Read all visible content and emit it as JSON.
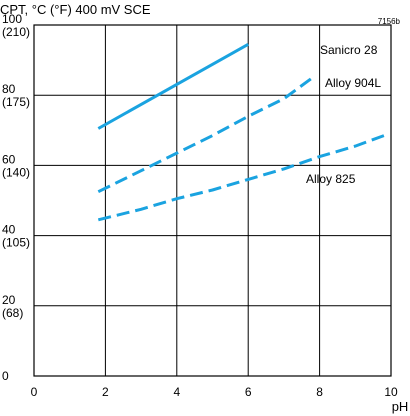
{
  "chart_data": {
    "type": "line",
    "title": "CPT, °C (°F) 400 mV SCE",
    "figure_id": "7156b",
    "xlabel": "pH",
    "ylabel": "",
    "xlim": [
      0,
      10
    ],
    "ylim": [
      0,
      100
    ],
    "grid": true,
    "x_ticks": [
      "0",
      "2",
      "4",
      "6",
      "8",
      "10"
    ],
    "y_ticks": [
      {
        "value": 0,
        "line1": "0",
        "line2": ""
      },
      {
        "value": 20,
        "line1": "20",
        "line2": "(68)"
      },
      {
        "value": 40,
        "line1": "40",
        "line2": "(105)"
      },
      {
        "value": 60,
        "line1": "60",
        "line2": "(140)"
      },
      {
        "value": 80,
        "line1": "80",
        "line2": "(175)"
      },
      {
        "value": 100,
        "line1": "100",
        "line2": "(210)"
      }
    ],
    "line_color": "#1aa3e0",
    "series": [
      {
        "name": "Sanicro 28",
        "style": "solid",
        "points": [
          [
            1.8,
            70.5
          ],
          [
            6.0,
            94.5
          ]
        ]
      },
      {
        "name": "Alloy 904L",
        "style": "dashed",
        "points": [
          [
            1.8,
            52.5
          ],
          [
            3.0,
            58.5
          ],
          [
            4.0,
            63.5
          ],
          [
            5.0,
            68.5
          ],
          [
            6.0,
            74
          ],
          [
            7.0,
            79
          ],
          [
            7.8,
            85
          ]
        ]
      },
      {
        "name": "Alloy 825",
        "style": "dashed",
        "points": [
          [
            1.8,
            44.5
          ],
          [
            3.0,
            47.5
          ],
          [
            4.0,
            50.5
          ],
          [
            5.0,
            53
          ],
          [
            6.0,
            56
          ],
          [
            7.0,
            59
          ],
          [
            8.0,
            62.5
          ],
          [
            9.0,
            65.5
          ],
          [
            9.8,
            68.5
          ]
        ]
      }
    ]
  }
}
